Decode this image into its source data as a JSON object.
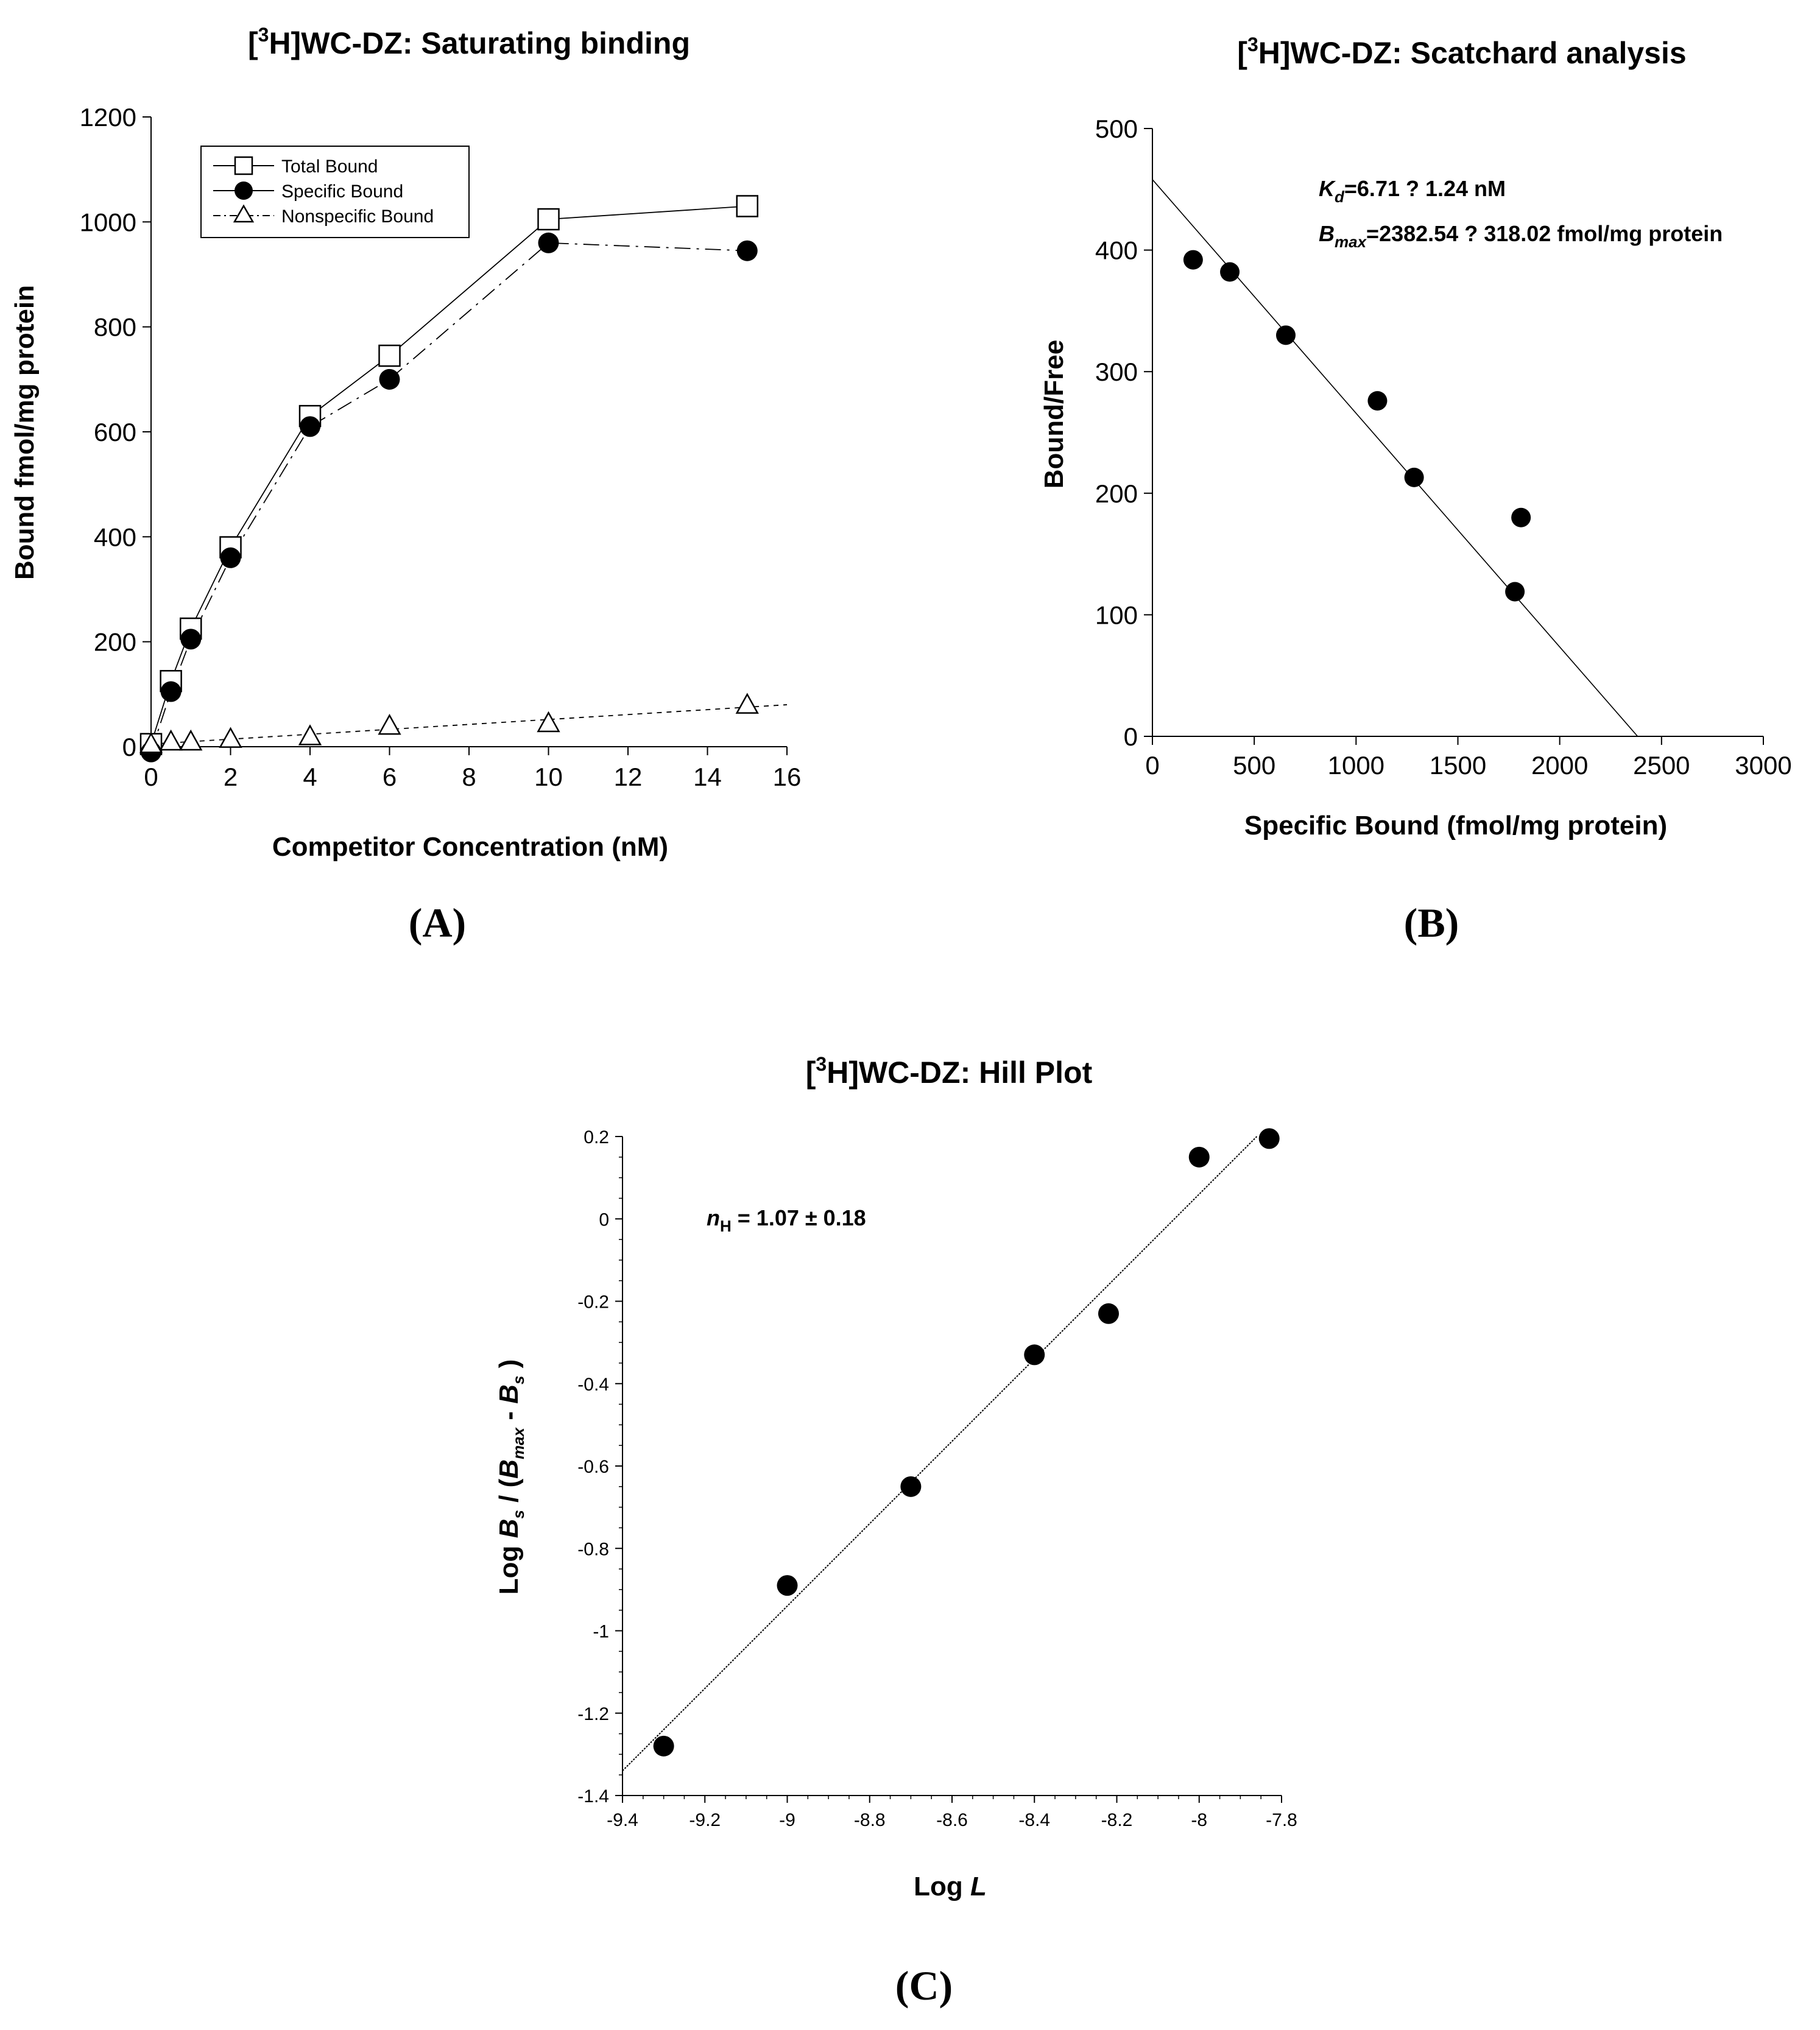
{
  "chart_data": [
    {
      "id": "A",
      "type": "line",
      "panel_label": "(A)",
      "title_prefix": "[",
      "title_sup": "3",
      "title_main": "H]WC-DZ: Saturating binding",
      "xlabel": "Competitor Concentration (nM)",
      "ylabel": "Bound fmol/mg protein",
      "xlim": [
        0,
        16
      ],
      "ylim": [
        0,
        1200
      ],
      "xticks": [
        0,
        2,
        4,
        6,
        8,
        10,
        12,
        14,
        16
      ],
      "yticks": [
        0,
        200,
        400,
        600,
        800,
        1000,
        1200
      ],
      "legend_position": "top-left",
      "series": [
        {
          "name": "Total Bound",
          "marker": "open-square",
          "line": "solid",
          "x": [
            0,
            0.5,
            1,
            2,
            4,
            6,
            10,
            15
          ],
          "y": [
            5,
            125,
            225,
            380,
            630,
            745,
            1005,
            1030
          ]
        },
        {
          "name": "Specific Bound",
          "marker": "filled-circle",
          "line": "dash-dot",
          "x": [
            0,
            0.5,
            1,
            2,
            4,
            6,
            10,
            15
          ],
          "y": [
            -10,
            105,
            205,
            360,
            610,
            700,
            960,
            945
          ]
        },
        {
          "name": "Nonspecific Bound",
          "marker": "open-triangle",
          "line": "dotted",
          "x": [
            0,
            0.5,
            1,
            2,
            4,
            6,
            10,
            15
          ],
          "y": [
            5,
            10,
            10,
            15,
            20,
            40,
            45,
            80
          ]
        }
      ],
      "fit_line": {
        "series": "Nonspecific Bound",
        "x": [
          0,
          16
        ],
        "y": [
          5,
          80
        ]
      }
    },
    {
      "id": "B",
      "type": "scatter",
      "panel_label": "(B)",
      "title_prefix": "[",
      "title_sup": "3",
      "title_main": "H]WC-DZ: Scatchard analysis",
      "xlabel": "Specific Bound (fmol/mg protein)",
      "ylabel": "Bound/Free",
      "xlim": [
        0,
        3000
      ],
      "ylim": [
        0,
        500
      ],
      "xticks": [
        0,
        500,
        1000,
        1500,
        2000,
        2500,
        3000
      ],
      "yticks": [
        0,
        100,
        200,
        300,
        400,
        500
      ],
      "annotation_kd": {
        "sym": "K",
        "sub": "d",
        "text": "=6.71 ? 1.24 nM"
      },
      "annotation_bmax": {
        "sym": "B",
        "sub": "max",
        "text": "=2382.54 ? 318.02 fmol/mg protein"
      },
      "series": [
        {
          "name": "Specific Bound",
          "marker": "filled-circle",
          "x": [
            200,
            380,
            655,
            1105,
            1285,
            1780,
            1810
          ],
          "y": [
            392,
            382,
            330,
            276,
            213,
            119,
            180
          ]
        }
      ],
      "fit_line": {
        "x": [
          0,
          2382.54
        ],
        "y": [
          458,
          0
        ]
      }
    },
    {
      "id": "C",
      "type": "scatter",
      "panel_label": "(C)",
      "title_prefix": "[",
      "title_sup": "3",
      "title_main": "H]WC-DZ: Hill Plot",
      "xlabel_main": "Log ",
      "xlabel_var": "L",
      "ylabel_main": "Log ",
      "ylabel_b": "B",
      "ylabel_s1": "s",
      "ylabel_mid": " / (",
      "ylabel_b2": "B",
      "ylabel_max": "max",
      "ylabel_minus": " - ",
      "ylabel_b3": "B",
      "ylabel_s2": "s",
      "ylabel_close": " )",
      "xlim": [
        -9.4,
        -7.8
      ],
      "ylim": [
        -1.4,
        0.2
      ],
      "xticks": [
        -9.4,
        -9.2,
        -9,
        -8.8,
        -8.6,
        -8.4,
        -8.2,
        -8,
        -7.8
      ],
      "xtick_labels": [
        "-9.4",
        "-9.2",
        "-9",
        "-8.8",
        "-8.6",
        "-8.4",
        "-8.2",
        "-8",
        "-7.8"
      ],
      "yticks": [
        -1.4,
        -1.2,
        -1,
        -0.8,
        -0.6,
        -0.4,
        -0.2,
        0,
        0.2
      ],
      "ytick_labels": [
        "-1.4",
        "-1.2",
        "-1",
        "-0.8",
        "-0.6",
        "-0.4",
        "-0.2",
        "0",
        "0.2"
      ],
      "annotation_n": {
        "sym": "n",
        "sub": "H",
        "text": " = 1.07 ± 0.18"
      },
      "series": [
        {
          "name": "Hill",
          "marker": "filled-circle",
          "x": [
            -9.3,
            -9.0,
            -8.7,
            -8.4,
            -8.22,
            -8.0,
            -7.83
          ],
          "y": [
            -1.28,
            -0.89,
            -0.65,
            -0.33,
            -0.23,
            0.15,
            0.195
          ]
        }
      ],
      "fit_line": {
        "x": [
          -9.4,
          -7.86
        ],
        "y": [
          -1.34,
          0.2
        ]
      }
    }
  ]
}
